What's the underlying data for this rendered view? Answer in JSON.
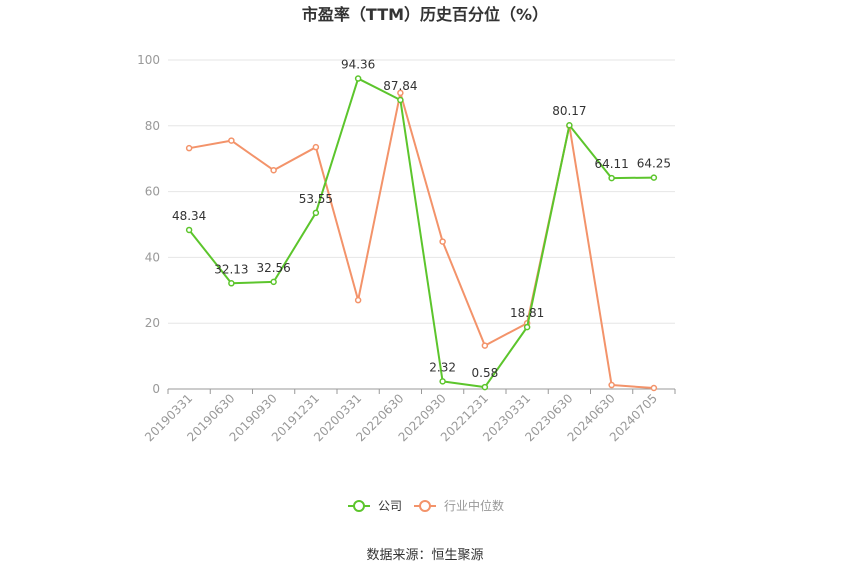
{
  "chart_data": {
    "type": "line",
    "title": "市盈率（TTM）历史百分位（%）",
    "categories": [
      "20190331",
      "20190630",
      "20190930",
      "20191231",
      "20200331",
      "20220630",
      "20220930",
      "20221231",
      "20230331",
      "20230630",
      "20240630",
      "20240705"
    ],
    "series": [
      {
        "name": "公司",
        "color": "#5cc52c",
        "values": [
          48.34,
          32.13,
          32.56,
          53.55,
          94.36,
          87.84,
          2.32,
          0.58,
          18.81,
          80.17,
          64.11,
          64.25
        ],
        "labels_shown": true
      },
      {
        "name": "行业中位数",
        "color": "#f3936a",
        "values": [
          73.2,
          75.5,
          66.5,
          73.5,
          27.0,
          90.0,
          44.8,
          13.2,
          20.0,
          80.0,
          1.2,
          0.3
        ],
        "labels_shown": false
      }
    ],
    "ylim": [
      0,
      100
    ],
    "yticks": [
      0,
      20,
      40,
      60,
      80,
      100
    ],
    "grid": true,
    "legend_position": "bottom"
  },
  "source": "数据来源：恒生聚源"
}
